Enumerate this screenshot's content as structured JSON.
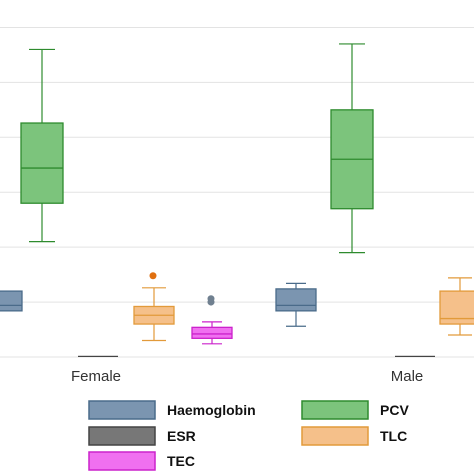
{
  "chart_data": {
    "type": "boxplot",
    "categories": [
      "Female",
      "Male"
    ],
    "ylim": [
      0,
      325
    ],
    "gridlines": [
      0,
      50,
      100,
      150,
      200,
      250,
      300
    ],
    "grid": true,
    "legend_position": "bottom",
    "series": [
      {
        "name": "Haemoglobin",
        "color": "#4a6b8a",
        "fill": "#7b95b0",
        "boxes": [
          {
            "min": 42,
            "q1": 42,
            "median": 47,
            "q3": 60,
            "max": 60,
            "outliers": []
          },
          {
            "min": 28,
            "q1": 42,
            "median": 47,
            "q3": 62,
            "max": 67,
            "outliers": []
          }
        ]
      },
      {
        "name": "ESR",
        "color": "#444444",
        "fill": "#777777",
        "boxes": [
          {
            "min": 0.5,
            "q1": 0.5,
            "median": 0.5,
            "q3": 0.5,
            "max": 0.5,
            "outliers": []
          },
          {
            "min": 0.5,
            "q1": 0.5,
            "median": 0.5,
            "q3": 0.5,
            "max": 0.5,
            "outliers": []
          }
        ]
      },
      {
        "name": "TEC",
        "color": "#cc22cc",
        "fill": "#f070f0",
        "boxes": [
          {
            "min": 12,
            "q1": 17,
            "median": 21,
            "q3": 27,
            "max": 32,
            "outliers": [
              {
                "value": 50,
                "color": "#708090"
              },
              {
                "value": 53,
                "color": "#708090"
              }
            ]
          },
          null
        ]
      },
      {
        "name": "PCV",
        "color": "#2e8b2e",
        "fill": "#7cc47c",
        "boxes": [
          {
            "min": 105,
            "q1": 140,
            "median": 172,
            "q3": 213,
            "max": 280,
            "outliers": []
          },
          {
            "min": 95,
            "q1": 135,
            "median": 180,
            "q3": 225,
            "max": 285,
            "outliers": []
          }
        ]
      },
      {
        "name": "TLC",
        "color": "#e29a3a",
        "fill": "#f5c08a",
        "boxes": [
          {
            "min": 15,
            "q1": 30,
            "median": 38,
            "q3": 46,
            "max": 63,
            "outliers": [
              {
                "value": 74,
                "color": "#e07010"
              }
            ]
          },
          {
            "min": 20,
            "q1": 30,
            "median": 35,
            "q3": 60,
            "max": 72,
            "outliers": []
          }
        ]
      }
    ]
  },
  "legend": {
    "items": [
      {
        "key": "haemoglobin",
        "label": "Haemoglobin",
        "fill": "#7b95b0",
        "stroke": "#4a6b8a"
      },
      {
        "key": "esr",
        "label": "ESR",
        "fill": "#777777",
        "stroke": "#444444"
      },
      {
        "key": "tec",
        "label": "TEC",
        "fill": "#f070f0",
        "stroke": "#cc22cc"
      },
      {
        "key": "pcv",
        "label": "PCV",
        "fill": "#7cc47c",
        "stroke": "#2e8b2e"
      },
      {
        "key": "tlc",
        "label": "TLC",
        "fill": "#f5c08a",
        "stroke": "#e29a3a"
      }
    ]
  }
}
